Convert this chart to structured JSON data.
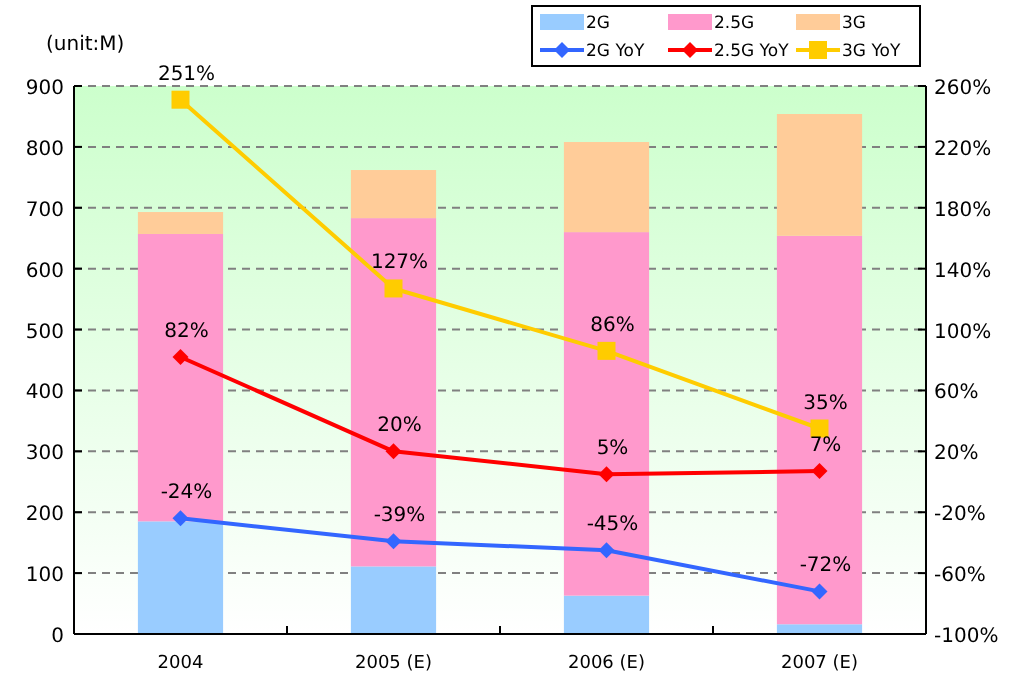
{
  "chart_data": {
    "type": "bar",
    "ylabel": "(unit:M)",
    "categories": [
      "2004",
      "2005 (E)",
      "2006 (E)",
      "2007 (E)"
    ],
    "stacked": true,
    "ylim": [
      0,
      900
    ],
    "yticks": [
      0,
      100,
      200,
      300,
      400,
      500,
      600,
      700,
      800,
      900
    ],
    "y2lim": [
      -100,
      260
    ],
    "y2ticks": [
      {
        "value": -100,
        "label": "-100%"
      },
      {
        "value": -60,
        "label": "-60%"
      },
      {
        "value": -20,
        "label": "-20%"
      },
      {
        "value": 20,
        "label": "20%"
      },
      {
        "value": 60,
        "label": "60%"
      },
      {
        "value": 100,
        "label": "100%"
      },
      {
        "value": 140,
        "label": "140%"
      },
      {
        "value": 180,
        "label": "180%"
      },
      {
        "value": 220,
        "label": "220%"
      },
      {
        "value": 260,
        "label": "260%"
      }
    ],
    "grid": "y",
    "legend": "top right",
    "series": [
      {
        "name": "2G",
        "color": "#99ccff",
        "values": [
          185,
          111,
          63,
          16
        ]
      },
      {
        "name": "2.5G",
        "color": "#ff99cc",
        "values": [
          472,
          572,
          597,
          638
        ]
      },
      {
        "name": "3G",
        "color": "#ffcc99",
        "values": [
          36,
          79,
          148,
          200
        ]
      },
      {
        "name": "2G YoY",
        "type": "line",
        "axis": "y2",
        "marker": "diamond",
        "color": "#3366ff",
        "values": [
          -24,
          -39,
          -45,
          -72
        ],
        "value_labels": [
          "-24%",
          "-39%",
          "-45%",
          "-72%"
        ]
      },
      {
        "name": "2.5G YoY",
        "type": "line",
        "axis": "y2",
        "marker": "diamond",
        "color": "#ff0000",
        "values": [
          82,
          20,
          5,
          7
        ],
        "value_labels": [
          "82%",
          "20%",
          "5%",
          "7%"
        ]
      },
      {
        "name": "3G YoY",
        "type": "line",
        "axis": "y2",
        "marker": "square",
        "color": "#ffcc00",
        "values": [
          251,
          127,
          86,
          35
        ],
        "value_labels": [
          "251%",
          "127%",
          "86%",
          "35%"
        ]
      }
    ]
  }
}
